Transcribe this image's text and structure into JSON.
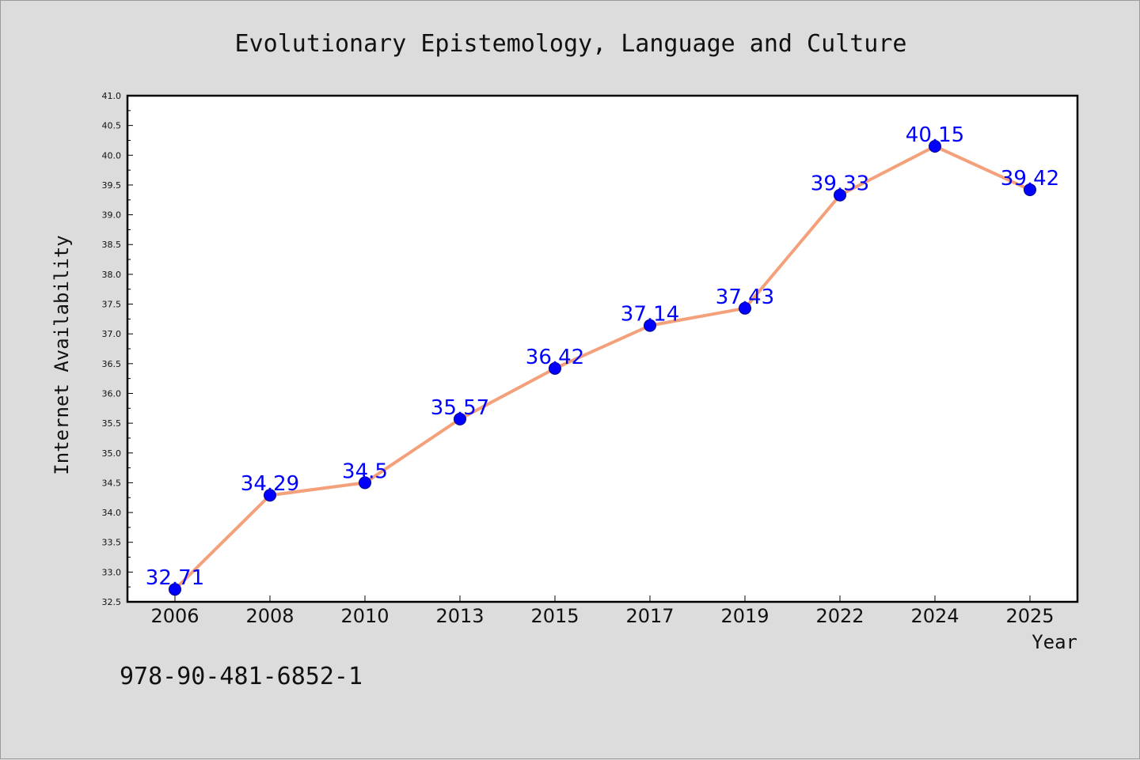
{
  "chart_data": {
    "type": "line",
    "title": "Evolutionary Epistemology, Language and Culture",
    "xlabel": "Year",
    "ylabel": "Internet Availability",
    "categories": [
      "2006",
      "2008",
      "2010",
      "2013",
      "2015",
      "2017",
      "2019",
      "2022",
      "2024",
      "2025"
    ],
    "series": [
      {
        "values": [
          32.71,
          34.29,
          34.5,
          35.57,
          36.42,
          37.14,
          37.43,
          39.33,
          40.15,
          39.42
        ],
        "data_labels": [
          "32.71",
          "34.29",
          "34.5",
          "35.57",
          "36.42",
          "37.14",
          "37.43",
          "39.33",
          "40.15",
          "39.42"
        ]
      }
    ],
    "ylim": [
      32.5,
      41.0
    ],
    "yticks": [
      "32.5",
      "33.0",
      "33.5",
      "34.0",
      "34.5",
      "35.0",
      "35.5",
      "36.0",
      "36.5",
      "37.0",
      "37.5",
      "38.0",
      "38.5",
      "39.0",
      "39.5",
      "40.0",
      "40.5",
      "41.0"
    ],
    "grid": false,
    "legend": "none",
    "colors": {
      "line": "#f4a07a",
      "marker": "#0000ff",
      "label": "#0000ff",
      "plot_bg": "#ffffff",
      "page_bg": "#dcdcdc"
    }
  },
  "footer": {
    "isbn": "978-90-481-6852-1"
  }
}
